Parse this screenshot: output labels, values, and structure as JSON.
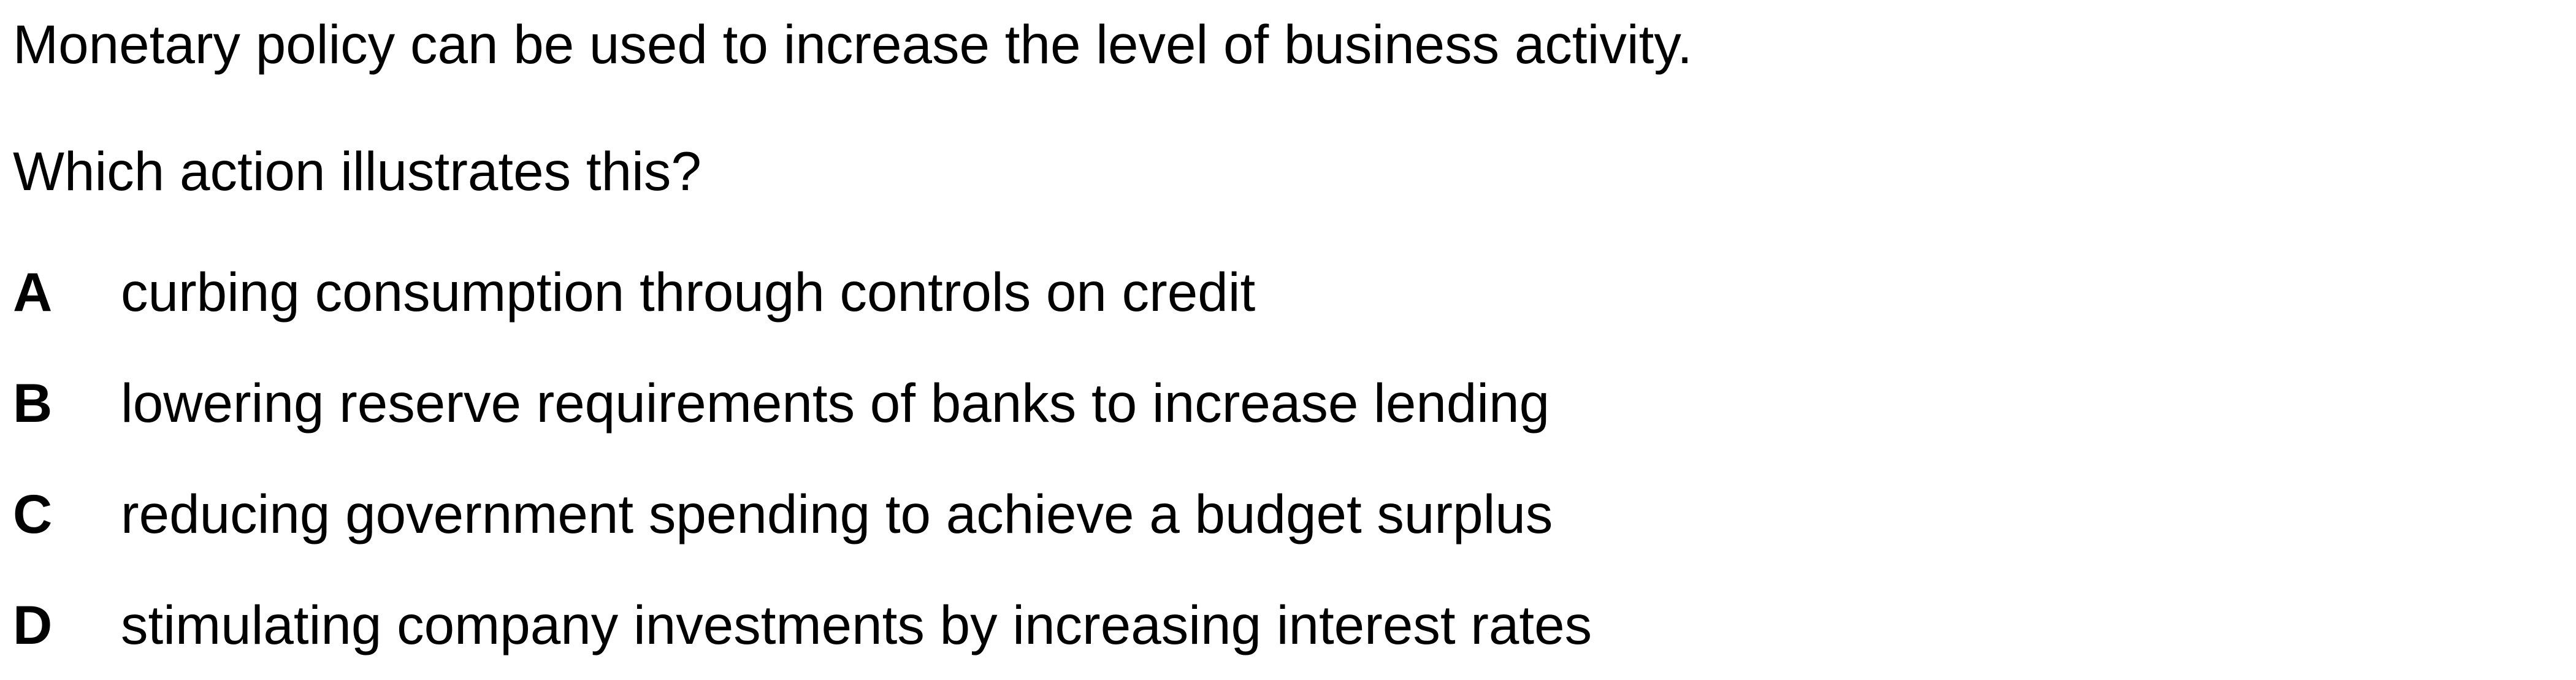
{
  "question": {
    "stem": "Monetary policy can be used to increase the level of business activity.",
    "prompt": "Which action illustrates this?",
    "options": [
      {
        "letter": "A",
        "text": "curbing consumption through controls on credit"
      },
      {
        "letter": "B",
        "text": "lowering reserve requirements of banks to increase lending"
      },
      {
        "letter": "C",
        "text": "reducing government spending to achieve a budget surplus"
      },
      {
        "letter": "D",
        "text": "stimulating company investments by increasing interest rates"
      }
    ]
  }
}
